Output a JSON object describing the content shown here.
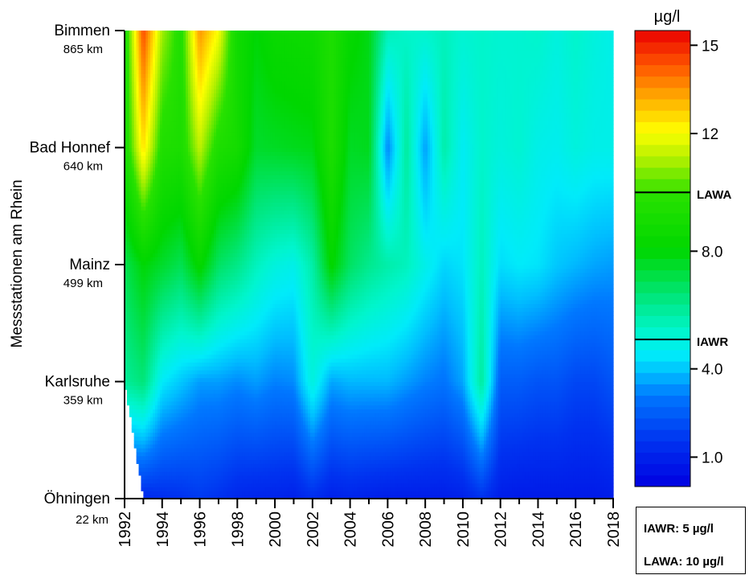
{
  "chart_data": {
    "type": "heatmap",
    "ylabel": "Messstationen am Rhein",
    "unit": "µg/l",
    "x": [
      1992,
      1993,
      1994,
      1995,
      1996,
      1997,
      1998,
      1999,
      2000,
      2001,
      2002,
      2003,
      2004,
      2005,
      2006,
      2007,
      2008,
      2009,
      2010,
      2011,
      2012,
      2013,
      2014,
      2015,
      2016,
      2017,
      2018
    ],
    "x_tick_labels": [
      "1992",
      "1994",
      "1996",
      "1998",
      "2000",
      "2002",
      "2004",
      "2006",
      "2008",
      "2010",
      "2012",
      "2014",
      "2016",
      "2018"
    ],
    "stations": [
      {
        "name": "Öhningen",
        "km": "22 km"
      },
      {
        "name": "Karlsruhe",
        "km": "359 km"
      },
      {
        "name": "Mainz",
        "km": "499 km"
      },
      {
        "name": "Bad Honnef",
        "km": "640 km"
      },
      {
        "name": "Bimmen",
        "km": "865 km"
      }
    ],
    "values": [
      [
        null,
        1.2,
        1.4,
        1.5,
        1.7,
        1.5,
        1.2,
        1.1,
        1.1,
        1.0,
        1.4,
        1.0,
        1.1,
        1.0,
        0.9,
        0.9,
        0.9,
        0.9,
        1.0,
        1.5,
        0.9,
        0.8,
        0.8,
        0.8,
        0.8,
        0.8,
        0.9
      ],
      [
        6.0,
        6.5,
        4.5,
        4.0,
        3.5,
        3.5,
        3.3,
        3.5,
        3.2,
        3.3,
        5.0,
        3.6,
        3.8,
        3.8,
        3.8,
        3.5,
        3.2,
        3.0,
        3.6,
        6.0,
        2.5,
        2.5,
        2.3,
        2.3,
        2.0,
        2.0,
        2.3
      ],
      [
        7.0,
        8.0,
        7.5,
        7.0,
        8.3,
        6.8,
        6.3,
        5.5,
        5.0,
        4.8,
        5.8,
        8.2,
        6.8,
        6.2,
        5.8,
        5.5,
        4.8,
        4.2,
        4.4,
        5.5,
        4.3,
        4.5,
        4.4,
        4.0,
        3.8,
        3.6,
        3.5
      ],
      [
        9.0,
        12.5,
        9.5,
        9.3,
        11.3,
        9.4,
        9.0,
        7.5,
        7.6,
        7.7,
        7.8,
        9.4,
        7.6,
        7.7,
        3.2,
        6.0,
        3.5,
        5.8,
        4.6,
        5.3,
        5.0,
        5.2,
        4.8,
        4.7,
        5.0,
        4.8,
        4.8
      ],
      [
        9.0,
        14.5,
        11.0,
        9.5,
        13.5,
        12.0,
        8.8,
        8.0,
        8.5,
        8.6,
        8.7,
        9.4,
        8.3,
        7.8,
        5.6,
        5.3,
        5.3,
        5.5,
        5.2,
        5.3,
        5.2,
        5.2,
        5.3,
        5.0,
        5.3,
        5.0,
        4.8
      ]
    ],
    "colorbar": {
      "min": 0,
      "max": 15.5,
      "ticks": [
        "1.0",
        "4.0",
        "8.0",
        "12",
        "15"
      ],
      "tick_values": [
        1.0,
        4.0,
        8.0,
        12,
        15
      ],
      "lines": [
        {
          "label": "LAWA",
          "value": 10
        },
        {
          "label": "IAWR",
          "value": 5
        }
      ]
    }
  },
  "limits_box": {
    "iawr": "IAWR: 5 µg/l",
    "lawa": "LAWA: 10 µg/l"
  }
}
